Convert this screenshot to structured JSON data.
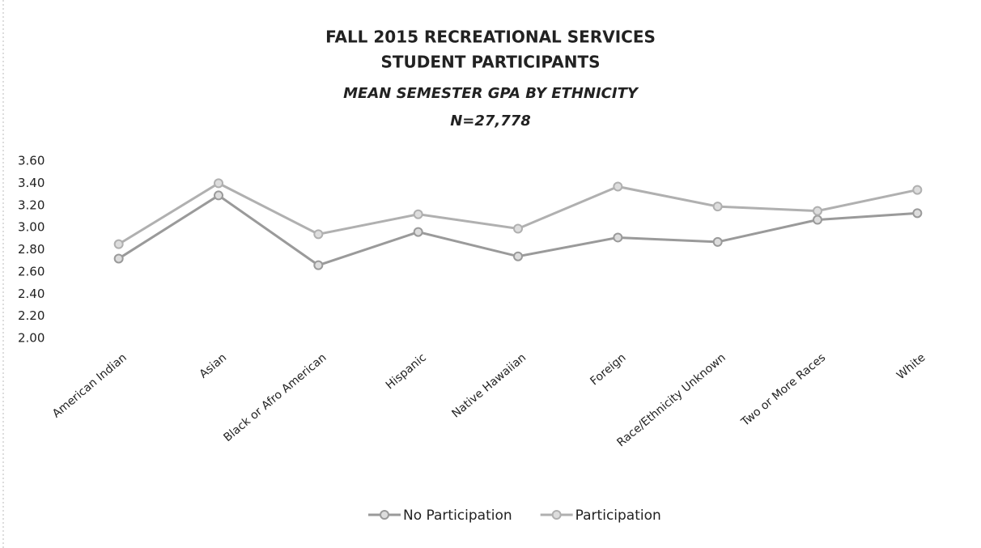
{
  "chart_data": {
    "type": "line",
    "title": [
      "FALL 2015 RECREATIONAL SERVICES",
      "STUDENT PARTICIPANTS"
    ],
    "subtitle": [
      "MEAN SEMESTER  GPA BY ETHNICITY",
      "N=27,778"
    ],
    "categories": [
      "American Indian",
      "Asian",
      "Black or Afro American",
      "Hispanic",
      "Native Hawaiian",
      "Foreign",
      "Race/Ethnicity Unknown",
      "Two or More Races",
      "White"
    ],
    "series": [
      {
        "name": "No Participation",
        "color": "#9a9a9a",
        "values": [
          2.72,
          3.29,
          2.66,
          2.96,
          2.74,
          2.91,
          2.87,
          3.07,
          3.13
        ]
      },
      {
        "name": "Participation",
        "color": "#b0b0b0",
        "values": [
          2.85,
          3.4,
          2.94,
          3.12,
          2.99,
          3.37,
          3.19,
          3.15,
          3.34
        ]
      }
    ],
    "ylim": [
      2.0,
      3.6
    ],
    "yticks": [
      {
        "value": 2.0,
        "label": "2.00"
      },
      {
        "value": 2.2,
        "label": "2.20"
      },
      {
        "value": 2.4,
        "label": "2.40"
      },
      {
        "value": 2.6,
        "label": "2.60"
      },
      {
        "value": 2.8,
        "label": "2.80"
      },
      {
        "value": 3.0,
        "label": "3.00"
      },
      {
        "value": 3.2,
        "label": "3.20"
      },
      {
        "value": 3.4,
        "label": "3.40"
      },
      {
        "value": 3.6,
        "label": "3.60"
      }
    ],
    "grid": false,
    "legend": "bottom"
  }
}
